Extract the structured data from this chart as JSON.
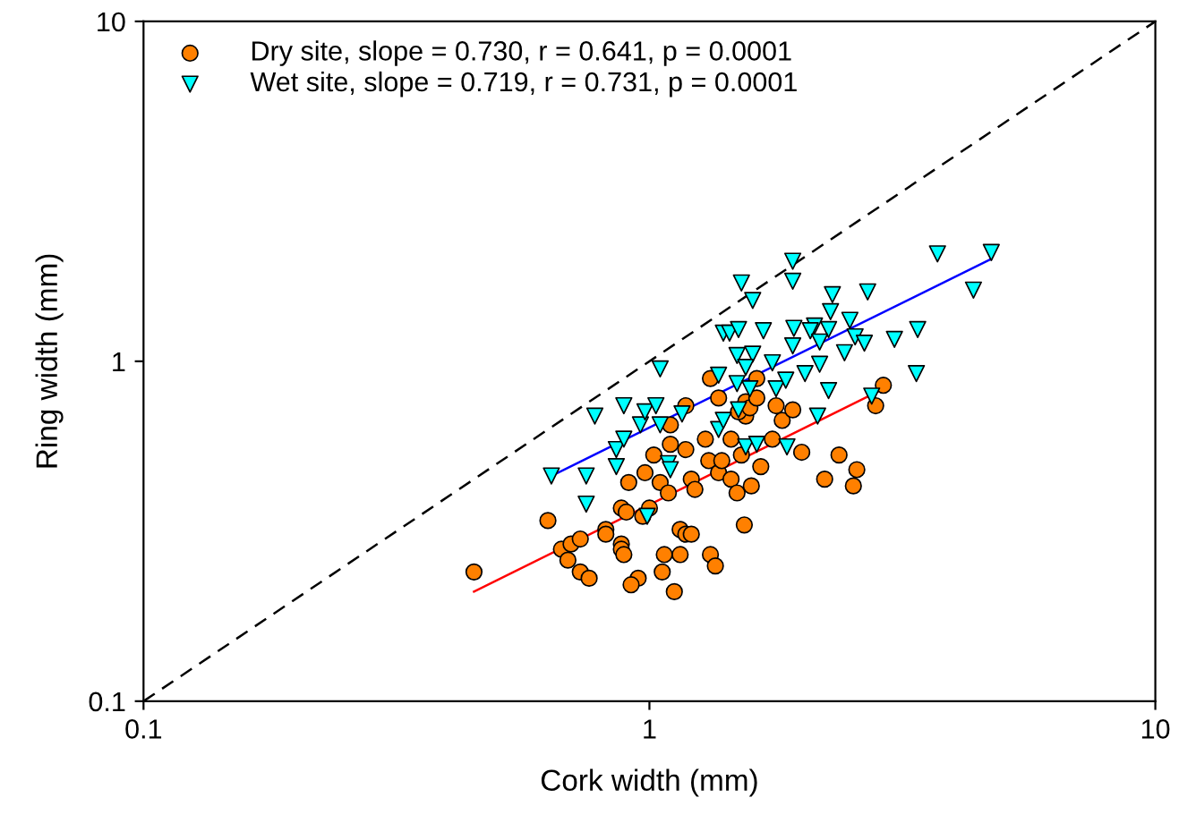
{
  "chart_data": {
    "type": "scatter",
    "xlabel": "Cork width (mm)",
    "ylabel": "Ring width (mm)",
    "log": "xy",
    "xlim": [
      0.1,
      10
    ],
    "ylim": [
      0.1,
      10
    ],
    "xticks": [
      0.1,
      1,
      10
    ],
    "yticks": [
      0.1,
      1,
      10
    ],
    "grid": false,
    "legend": "top left",
    "series": [
      {
        "name": "Dry site, slope = 0.730, r = 0.641, p = 0.0001",
        "marker": "circle",
        "color": "#ff8000",
        "x": [
          0.45,
          0.63,
          0.67,
          0.7,
          0.73,
          0.69,
          0.73,
          0.76,
          0.82,
          0.82,
          0.88,
          0.88,
          0.89,
          0.88,
          0.9,
          0.91,
          0.95,
          0.92,
          0.98,
          0.97,
          1.0,
          1.02,
          1.05,
          1.07,
          1.06,
          1.12,
          1.15,
          1.1,
          1.1,
          1.18,
          1.09,
          1.21,
          1.23,
          1.15,
          1.18,
          1.21,
          1.18,
          1.29,
          1.32,
          1.35,
          1.31,
          1.37,
          1.39,
          1.45,
          1.49,
          1.54,
          1.59,
          1.52,
          1.66,
          1.45,
          1.37,
          1.55,
          1.5,
          1.55,
          1.58,
          1.63,
          1.32,
          1.63,
          1.78,
          1.83,
          1.75,
          1.92,
          2.9,
          2.8,
          2.0,
          2.37,
          2.57,
          2.22,
          2.53
        ],
        "values": [
          0.24,
          0.34,
          0.28,
          0.29,
          0.3,
          0.26,
          0.24,
          0.23,
          0.32,
          0.31,
          0.29,
          0.28,
          0.27,
          0.37,
          0.36,
          0.44,
          0.23,
          0.22,
          0.47,
          0.35,
          0.37,
          0.53,
          0.44,
          0.27,
          0.24,
          0.21,
          0.27,
          0.57,
          0.65,
          0.55,
          0.41,
          0.45,
          0.42,
          0.32,
          0.31,
          0.31,
          0.74,
          0.59,
          0.27,
          0.25,
          0.51,
          0.47,
          0.51,
          0.45,
          0.41,
          0.33,
          0.43,
          0.53,
          0.49,
          0.59,
          0.78,
          0.69,
          0.71,
          0.76,
          0.73,
          0.78,
          0.89,
          0.89,
          0.74,
          0.67,
          0.59,
          0.72,
          0.85,
          0.74,
          0.54,
          0.53,
          0.48,
          0.45,
          0.43
        ]
      },
      {
        "name": "Wet site, slope = 0.719, r = 0.731, p = 0.0001",
        "marker": "triangle",
        "color": "#00ffff",
        "x": [
          0.64,
          0.75,
          0.75,
          0.78,
          0.86,
          0.86,
          0.89,
          0.89,
          0.96,
          0.98,
          1.03,
          1.05,
          1.05,
          1.09,
          1.1,
          0.99,
          1.16,
          1.37,
          1.4,
          1.37,
          1.49,
          1.6,
          1.55,
          1.49,
          1.5,
          1.58,
          1.4,
          1.44,
          1.5,
          1.68,
          1.52,
          1.6,
          1.75,
          1.78,
          1.55,
          1.63,
          1.92,
          1.92,
          2.3,
          2.7,
          2.28,
          3.71,
          4.74,
          4.37,
          3.39,
          3.05,
          2.49,
          2.55,
          2.66,
          2.12,
          2.26,
          2.08,
          2.17,
          2.43,
          1.93,
          1.92,
          2.03,
          2.17,
          3.37,
          2.26,
          2.75,
          1.86,
          2.15,
          1.87
        ],
        "values": [
          0.46,
          0.46,
          0.38,
          0.69,
          0.55,
          0.49,
          0.59,
          0.74,
          0.65,
          0.71,
          0.74,
          0.65,
          0.95,
          0.5,
          0.48,
          0.35,
          0.7,
          0.63,
          0.67,
          0.91,
          1.04,
          1.05,
          0.96,
          0.86,
          0.72,
          0.83,
          1.21,
          1.21,
          1.24,
          1.23,
          1.7,
          1.51,
          0.99,
          0.83,
          0.56,
          0.57,
          1.97,
          1.72,
          1.57,
          1.6,
          1.4,
          2.07,
          2.09,
          1.62,
          1.24,
          1.16,
          1.32,
          1.18,
          1.13,
          1.27,
          1.24,
          1.23,
          1.14,
          1.06,
          1.25,
          1.11,
          0.92,
          0.98,
          0.92,
          0.82,
          0.79,
          0.88,
          0.69,
          0.56
        ]
      },
      {
        "type": "line",
        "color": "#ff0000",
        "line_style": "solid",
        "x": [
          0.45,
          2.9
        ],
        "values": [
          0.21,
          0.83
        ]
      },
      {
        "type": "line",
        "color": "#0000ff",
        "line_style": "solid",
        "x": [
          0.64,
          4.74
        ],
        "values": [
          0.46,
          2.0
        ]
      },
      {
        "type": "line",
        "color": "#000000",
        "line_style": "dashed",
        "x": [
          0.1,
          10
        ],
        "values": [
          0.1,
          10
        ]
      }
    ]
  }
}
